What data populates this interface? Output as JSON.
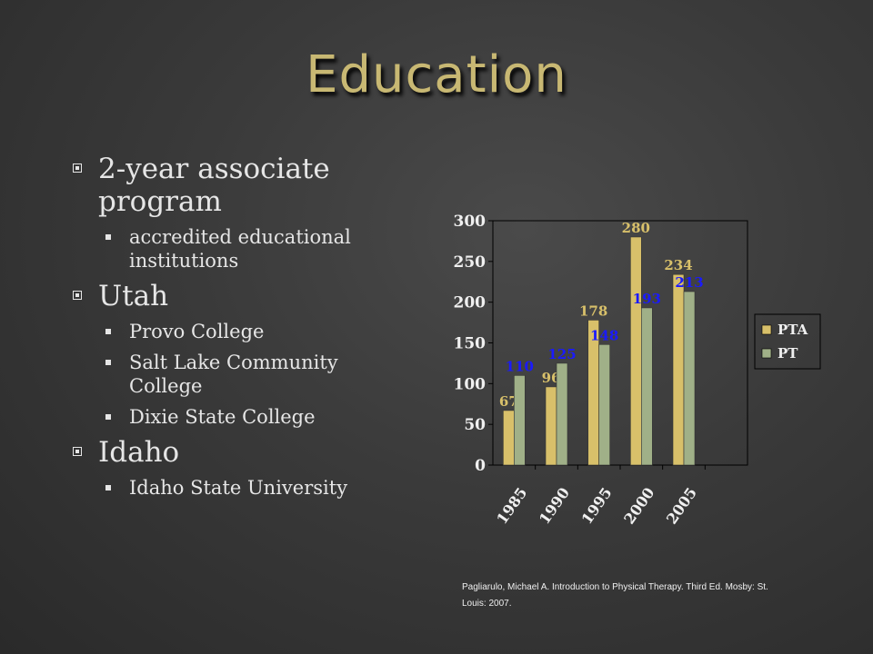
{
  "slide": {
    "title": "Education",
    "bullets": [
      {
        "text": "2-year associate program",
        "sub": [
          "accredited educational institutions"
        ]
      },
      {
        "text": "Utah",
        "sub": [
          "Provo College",
          "Salt Lake Community College",
          "Dixie State College"
        ]
      },
      {
        "text": "Idaho",
        "sub": [
          "Idaho State University"
        ]
      }
    ],
    "citation": "Pagliarulo, Michael A. Introduction to Physical Therapy. Third Ed. Mosby: St. Louis: 2007."
  },
  "chart_data": {
    "type": "bar",
    "categories": [
      "1985",
      "1990",
      "1995",
      "2000",
      "2005"
    ],
    "series": [
      {
        "name": "PTA",
        "values": [
          67,
          96,
          178,
          280,
          234
        ],
        "color": "#d8c06a",
        "label_color": "#d8c06a"
      },
      {
        "name": "PT",
        "values": [
          110,
          125,
          148,
          193,
          213
        ],
        "color": "#a0b088",
        "label_color": "#1a1aff"
      }
    ],
    "ylim": [
      0,
      300
    ],
    "yticks": [
      0,
      50,
      100,
      150,
      200,
      250,
      300
    ],
    "legend": "right",
    "grid": false
  }
}
